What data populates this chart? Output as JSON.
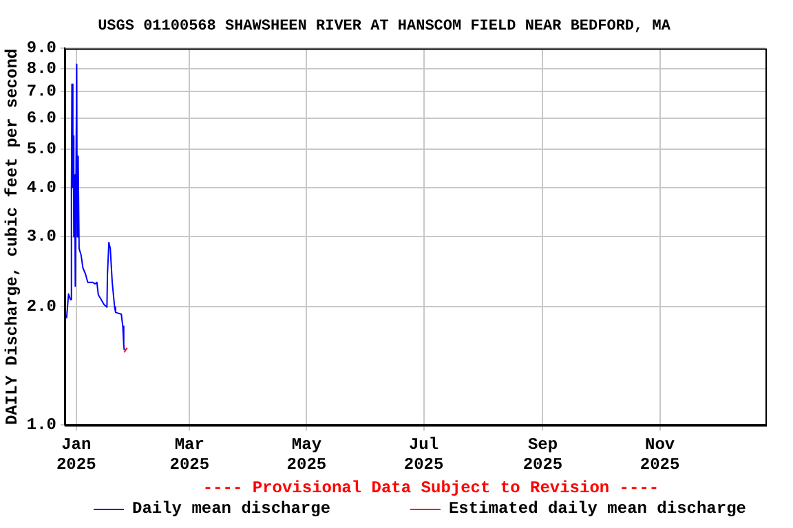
{
  "chart_data": {
    "type": "line",
    "title": "USGS 01100568 SHAWSHEEN RIVER AT HANSCOM FIELD NEAR BEDFORD, MA",
    "ylabel": "DAILY Discharge, cubic feet per second",
    "log": "y",
    "grid": true,
    "legend": "bottom",
    "marker": "none",
    "line_style": "solid",
    "xlim": [
      "2024-12-26",
      "2025-12-26"
    ],
    "xticks": [
      {
        "value": "2025-01-01",
        "label": "Jan 2025"
      },
      {
        "value": "2025-03-01",
        "label": "Mar 2025"
      },
      {
        "value": "2025-05-01",
        "label": "May 2025"
      },
      {
        "value": "2025-07-01",
        "label": "Jul 2025"
      },
      {
        "value": "2025-09-01",
        "label": "Sep 2025"
      },
      {
        "value": "2025-11-01",
        "label": "Nov 2025"
      }
    ],
    "ylim": [
      1,
      9
    ],
    "yticks": [
      {
        "value": 1,
        "label": "1.0"
      },
      {
        "value": 2,
        "label": "2.0"
      },
      {
        "value": 3,
        "label": "3.0"
      },
      {
        "value": 4,
        "label": "4.0"
      },
      {
        "value": 5,
        "label": "5.0"
      },
      {
        "value": 6,
        "label": "6.0"
      },
      {
        "value": 7,
        "label": "7.0"
      },
      {
        "value": 8,
        "label": "8.0"
      },
      {
        "value": 9,
        "label": "9.0"
      }
    ],
    "annotations": [
      "---- Provisional Data Subject to Revision ----"
    ],
    "series": [
      {
        "name": "Daily mean discharge",
        "color": "#0000ff",
        "x": [
          "2024-12-26",
          "2024-12-27",
          "2024-12-28",
          "2024-12-29",
          "2024-12-29T12:00",
          "2024-12-29T18:00",
          "2024-12-30T06:00",
          "2024-12-30T12:00",
          "2024-12-30T18:00",
          "2024-12-31T06:00",
          "2024-12-31T12:00",
          "2025-01-01T06:00",
          "2025-01-01T12:00",
          "2025-01-02",
          "2025-01-02T12:00",
          "2025-01-03T12:00",
          "2025-01-04T12:00",
          "2025-01-05T18:00",
          "2025-01-07",
          "2025-01-09T12:00",
          "2025-01-10T18:00",
          "2025-01-11T18:00",
          "2025-01-12T12:00",
          "2025-01-14",
          "2025-01-15T12:00",
          "2025-01-17",
          "2025-01-17T06:00",
          "2025-01-18",
          "2025-01-18T18:00",
          "2025-01-19T18:00",
          "2025-01-21",
          "2025-01-21T12:00",
          "2025-01-24T12:00",
          "2025-01-25T06:00",
          "2025-01-25T18:00",
          "2025-01-26"
        ],
        "values": [
          1.9,
          1.87,
          2.15,
          2.08,
          3.9,
          7.3,
          4.0,
          5.4,
          3.0,
          4.3,
          2.25,
          8.2,
          3.0,
          4.8,
          2.8,
          2.7,
          2.5,
          2.42,
          2.3,
          2.3,
          2.28,
          2.3,
          2.14,
          2.08,
          2.02,
          1.99,
          2.4,
          2.9,
          2.8,
          2.3,
          1.99,
          1.93,
          1.91,
          1.78,
          1.6,
          1.55
        ]
      },
      {
        "name": "Estimated daily mean discharge",
        "color": "#ff0000",
        "x": [
          "2025-01-26",
          "2025-01-27T12:00"
        ],
        "values": [
          1.53,
          1.57
        ]
      }
    ]
  }
}
